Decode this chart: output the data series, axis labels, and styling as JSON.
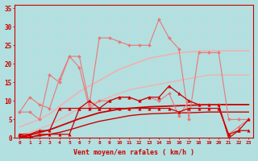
{
  "background_color": "#b2e0e0",
  "grid_color": "#c8d8d8",
  "x_labels": [
    "0",
    "1",
    "2",
    "3",
    "4",
    "5",
    "6",
    "7",
    "8",
    "9",
    "10",
    "11",
    "12",
    "13",
    "14",
    "15",
    "16",
    "17",
    "18",
    "19",
    "20",
    "21",
    "22",
    "23"
  ],
  "xlabel": "Vent moyen/en rafales ( km/h )",
  "ylim": [
    0,
    36
  ],
  "xlim": [
    0,
    23
  ],
  "yticks": [
    0,
    5,
    10,
    15,
    20,
    25,
    30,
    35
  ],
  "lines": [
    {
      "label": "gust_light",
      "color": "#e87878",
      "linewidth": 0.8,
      "marker": "D",
      "markersize": 2.0,
      "values": [
        7,
        7,
        5,
        17,
        15,
        22,
        22,
        9,
        27,
        27,
        26,
        25,
        25,
        25,
        32,
        27,
        24,
        5,
        23,
        23,
        23,
        5,
        5,
        5
      ]
    },
    {
      "label": "mean_light",
      "color": "#e87878",
      "linewidth": 0.8,
      "marker": "D",
      "markersize": 2.0,
      "values": [
        7,
        11,
        9,
        8,
        16,
        22,
        19,
        8,
        10,
        10,
        11,
        11,
        10,
        11,
        10,
        12,
        6,
        10,
        9,
        9,
        9,
        1,
        3,
        5
      ]
    },
    {
      "label": "trend_gust_light",
      "color": "#f0b0b0",
      "linewidth": 1.2,
      "marker": null,
      "values": [
        3.0,
        4.0,
        5.0,
        6.5,
        8.5,
        10.5,
        12.5,
        14.0,
        15.5,
        17.0,
        18.5,
        19.5,
        20.5,
        21.5,
        22.0,
        22.5,
        23.0,
        23.2,
        23.4,
        23.5,
        23.5,
        23.5,
        23.5,
        23.5
      ]
    },
    {
      "label": "trend_mean_light",
      "color": "#f0b0b0",
      "linewidth": 1.0,
      "marker": null,
      "values": [
        1.0,
        1.5,
        2.5,
        3.5,
        5.0,
        6.5,
        8.0,
        9.0,
        10.0,
        11.0,
        12.0,
        13.0,
        13.5,
        14.0,
        14.5,
        15.0,
        15.5,
        16.0,
        16.5,
        17.0,
        17.0,
        17.0,
        17.0,
        17.0
      ]
    },
    {
      "label": "mean_dark",
      "color": "#cc0000",
      "linewidth": 0.9,
      "marker": "^",
      "markersize": 2.5,
      "values": [
        1,
        0,
        1,
        1,
        1,
        1,
        8,
        10,
        8,
        10,
        11,
        11,
        10,
        11,
        11,
        14,
        12,
        10,
        9,
        9,
        9,
        0,
        2,
        2
      ]
    },
    {
      "label": "gust_dark",
      "color": "#cc0000",
      "linewidth": 0.9,
      "marker": "^",
      "markersize": 2.5,
      "values": [
        1,
        1,
        2,
        2,
        8,
        8,
        8,
        8,
        8,
        8,
        8,
        8,
        8,
        8,
        8,
        8,
        7,
        8,
        8,
        8,
        8,
        1,
        2,
        5
      ]
    },
    {
      "label": "trend_gust_dark",
      "color": "#cc0000",
      "linewidth": 1.3,
      "marker": null,
      "values": [
        0.3,
        0.8,
        1.5,
        2.2,
        3.2,
        4.2,
        5.2,
        6.0,
        6.8,
        7.3,
        7.8,
        8.0,
        8.2,
        8.4,
        8.5,
        8.6,
        8.7,
        8.8,
        8.9,
        9.0,
        9.0,
        9.0,
        9.0,
        9.0
      ]
    },
    {
      "label": "trend_mean_dark",
      "color": "#cc0000",
      "linewidth": 1.0,
      "marker": null,
      "values": [
        0.1,
        0.3,
        0.6,
        1.0,
        1.5,
        2.2,
        3.0,
        3.8,
        4.5,
        5.0,
        5.5,
        6.0,
        6.3,
        6.5,
        6.6,
        6.7,
        6.8,
        6.8,
        6.9,
        7.0,
        7.0,
        7.0,
        7.0,
        7.0
      ]
    }
  ]
}
